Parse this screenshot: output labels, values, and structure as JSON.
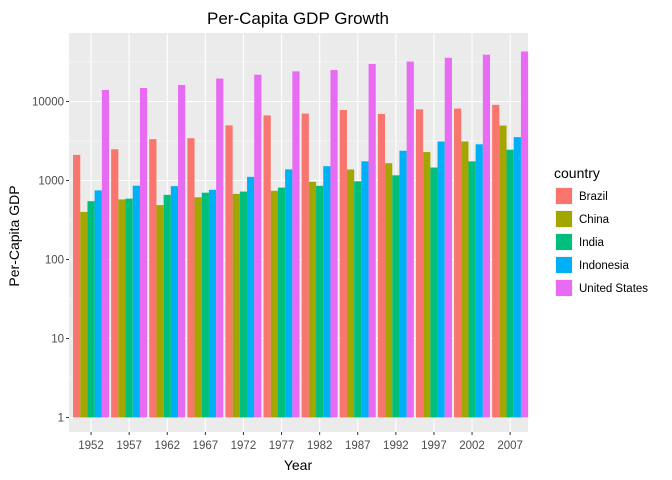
{
  "chart_data": {
    "type": "bar",
    "title": "Per-Capita GDP Growth",
    "xlabel": "Year",
    "ylabel": "Per-Capita GDP",
    "y_scale": "log10",
    "ylim": [
      1,
      50000
    ],
    "y_ticks": [
      1,
      10,
      100,
      1000,
      10000
    ],
    "y_tick_labels": [
      "1",
      "10",
      "100",
      "1000",
      "10000"
    ],
    "categories": [
      "1952",
      "1957",
      "1962",
      "1967",
      "1972",
      "1977",
      "1982",
      "1987",
      "1992",
      "1997",
      "2002",
      "2007"
    ],
    "legend_title": "country",
    "legend_position": "right",
    "grid": true,
    "background": "#ebebeb",
    "series": [
      {
        "name": "Brazil",
        "color": "#F8766D",
        "values": [
          2109,
          2487,
          3337,
          3430,
          4986,
          6660,
          7031,
          7807,
          6950,
          7958,
          8131,
          9066
        ]
      },
      {
        "name": "China",
        "color": "#A3A500",
        "values": [
          400,
          576,
          488,
          613,
          677,
          741,
          962,
          1379,
          1656,
          2289,
          3119,
          4959
        ]
      },
      {
        "name": "India",
        "color": "#00BF7D",
        "values": [
          547,
          590,
          658,
          701,
          724,
          813,
          856,
          977,
          1164,
          1459,
          1747,
          2452
        ]
      },
      {
        "name": "Indonesia",
        "color": "#00B0F6",
        "values": [
          750,
          859,
          849,
          762,
          1112,
          1383,
          1517,
          1748,
          2383,
          3119,
          2874,
          3541
        ]
      },
      {
        "name": "United States",
        "color": "#E76BF3",
        "values": [
          13990,
          14847,
          16173,
          19530,
          21806,
          24073,
          25010,
          29884,
          32004,
          35767,
          39097,
          42952
        ]
      }
    ]
  }
}
